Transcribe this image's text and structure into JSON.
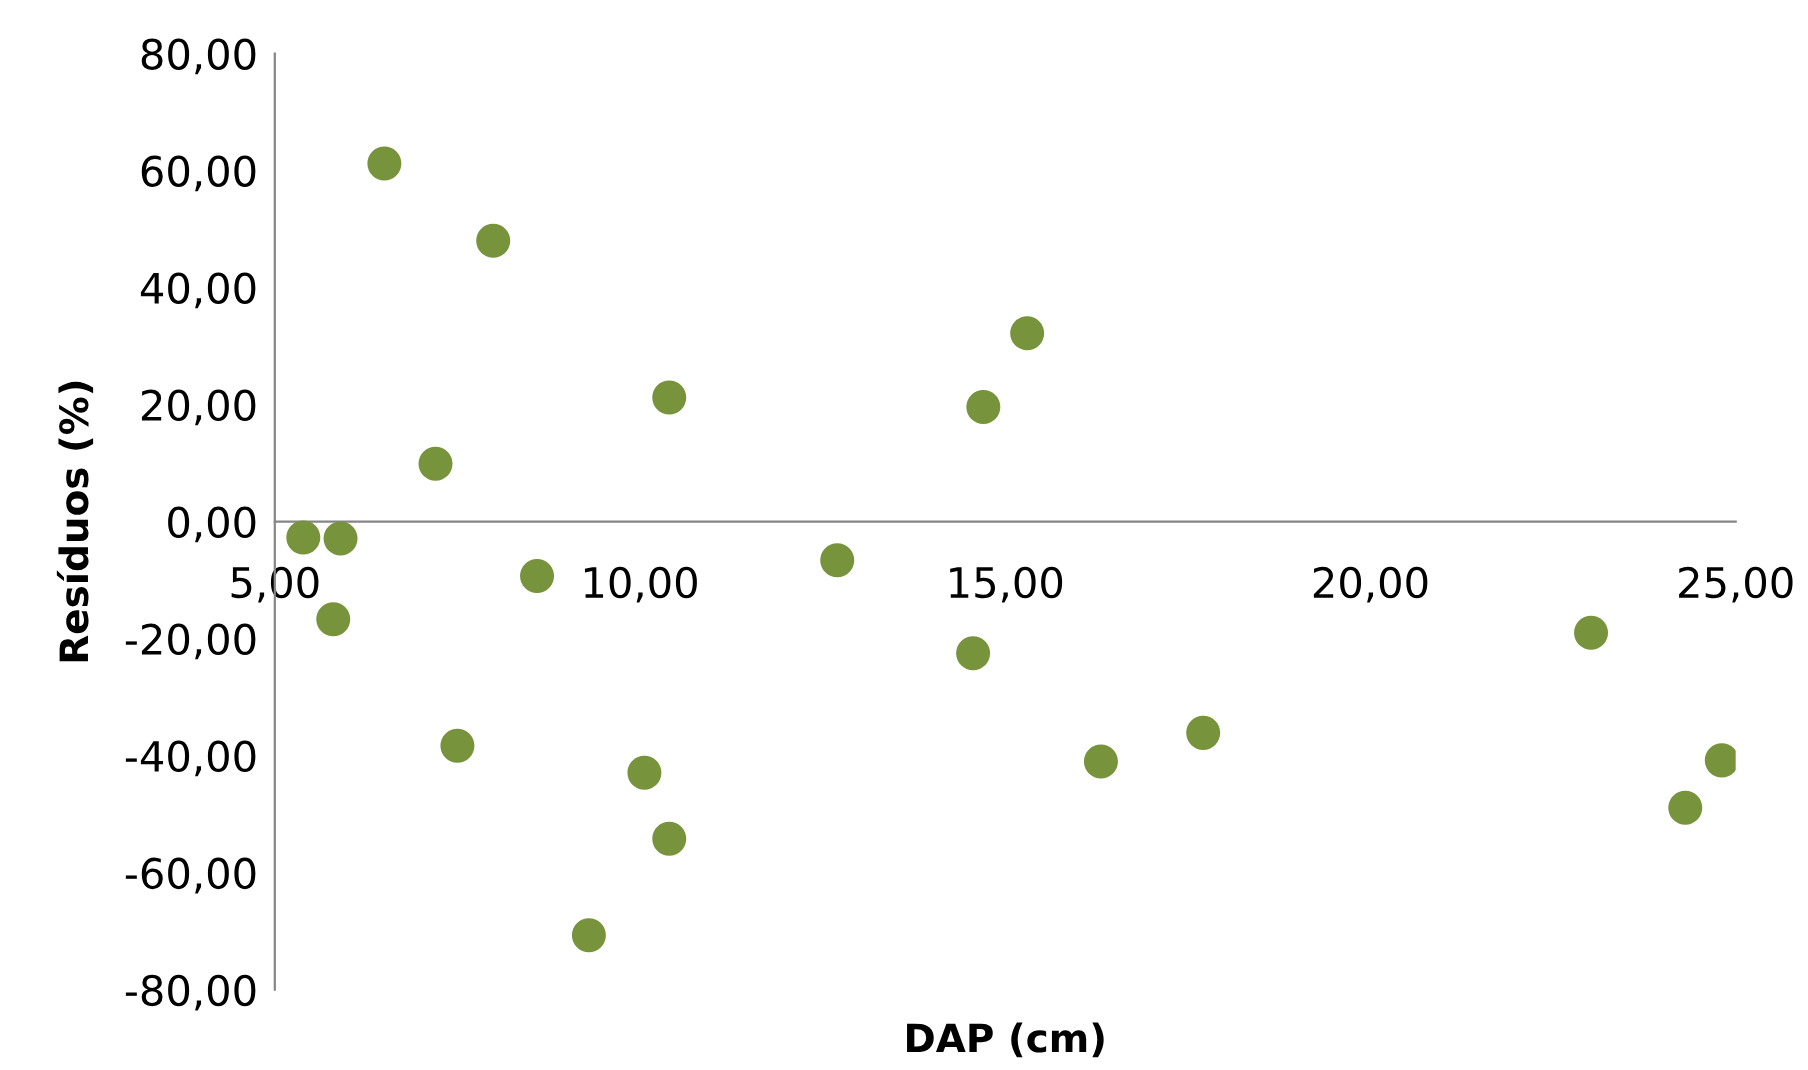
{
  "chart_data": {
    "type": "scatter",
    "xlabel": "DAP (cm)",
    "ylabel": "Resíduos (%)",
    "x": [
      5.39,
      5.9,
      5.8,
      6.5,
      7.2,
      7.5,
      7.99,
      8.59,
      9.3,
      10.06,
      10.4,
      10.4,
      12.7,
      14.56,
      14.7,
      15.3,
      16.31,
      17.71,
      23.02,
      24.31,
      24.81
    ],
    "series": [
      {
        "color": "#77933c",
        "values": [
          -2.7,
          -2.9,
          -16.7,
          61.2,
          9.9,
          -38.3,
          48.0,
          -9.3,
          -70.7,
          -42.9,
          21.2,
          -54.2,
          -6.6,
          -22.5,
          19.6,
          32.2,
          -41.0,
          -36.1,
          -19.0,
          -48.9,
          -40.8
        ]
      }
    ],
    "xlim": [
      5,
      25
    ],
    "ylim": [
      -80,
      80
    ],
    "xticks": [
      {
        "value": 5,
        "label": "5,00"
      },
      {
        "value": 10,
        "label": "10,00"
      },
      {
        "value": 15,
        "label": "15,00"
      },
      {
        "value": 20,
        "label": "20,00"
      },
      {
        "value": 25,
        "label": "25,00"
      }
    ],
    "yticks": [
      {
        "value": -80,
        "label": "-80,00"
      },
      {
        "value": -60,
        "label": "-60,00"
      },
      {
        "value": -40,
        "label": "-40,00"
      },
      {
        "value": -20,
        "label": "-20,00"
      },
      {
        "value": 0,
        "label": "0,00"
      },
      {
        "value": 20,
        "label": "20,00"
      },
      {
        "value": 40,
        "label": "40,00"
      },
      {
        "value": 60,
        "label": "60,00"
      },
      {
        "value": 80,
        "label": "80,00"
      }
    ],
    "marker": "circle",
    "grid": false,
    "legend": false
  }
}
